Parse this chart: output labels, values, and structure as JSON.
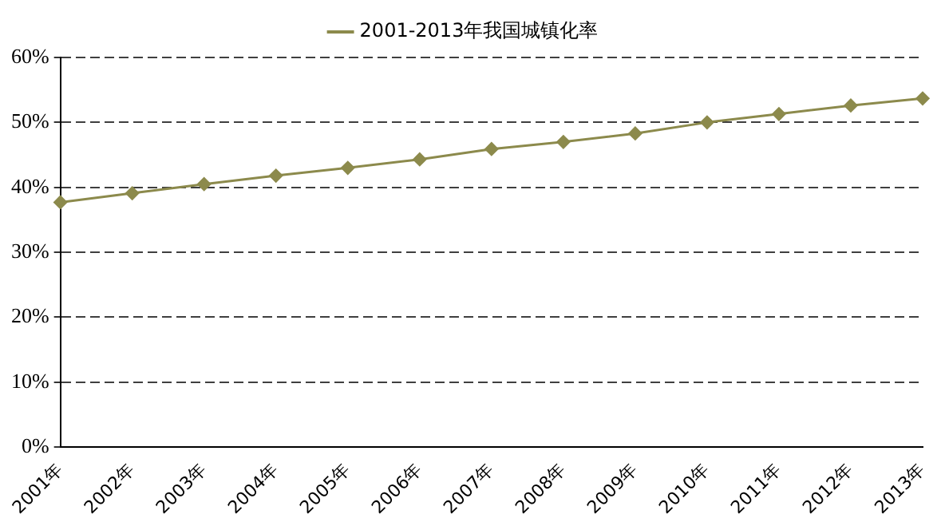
{
  "chart_data": {
    "type": "line",
    "categories": [
      "2001年",
      "2002年",
      "2003年",
      "2004年",
      "2005年",
      "2006年",
      "2007年",
      "2008年",
      "2009年",
      "2010年",
      "2011年",
      "2012年",
      "2013年"
    ],
    "series": [
      {
        "name": "2001-2013年我国城镇化率",
        "color": "#8c8a4c",
        "values": [
          37.7,
          39.1,
          40.5,
          41.8,
          43.0,
          44.3,
          45.9,
          47.0,
          48.3,
          50.0,
          51.3,
          52.6,
          53.7
        ]
      }
    ],
    "ylim": [
      0,
      60
    ],
    "yticks": [
      {
        "value": 0,
        "label": "0%"
      },
      {
        "value": 10,
        "label": "10%"
      },
      {
        "value": 20,
        "label": "20%"
      },
      {
        "value": 30,
        "label": "30%"
      },
      {
        "value": 40,
        "label": "40%"
      },
      {
        "value": 50,
        "label": "50%"
      },
      {
        "value": 60,
        "label": "60%"
      }
    ],
    "grid": "y",
    "legend": "top",
    "marker": "diamond",
    "line_style": "solid"
  }
}
